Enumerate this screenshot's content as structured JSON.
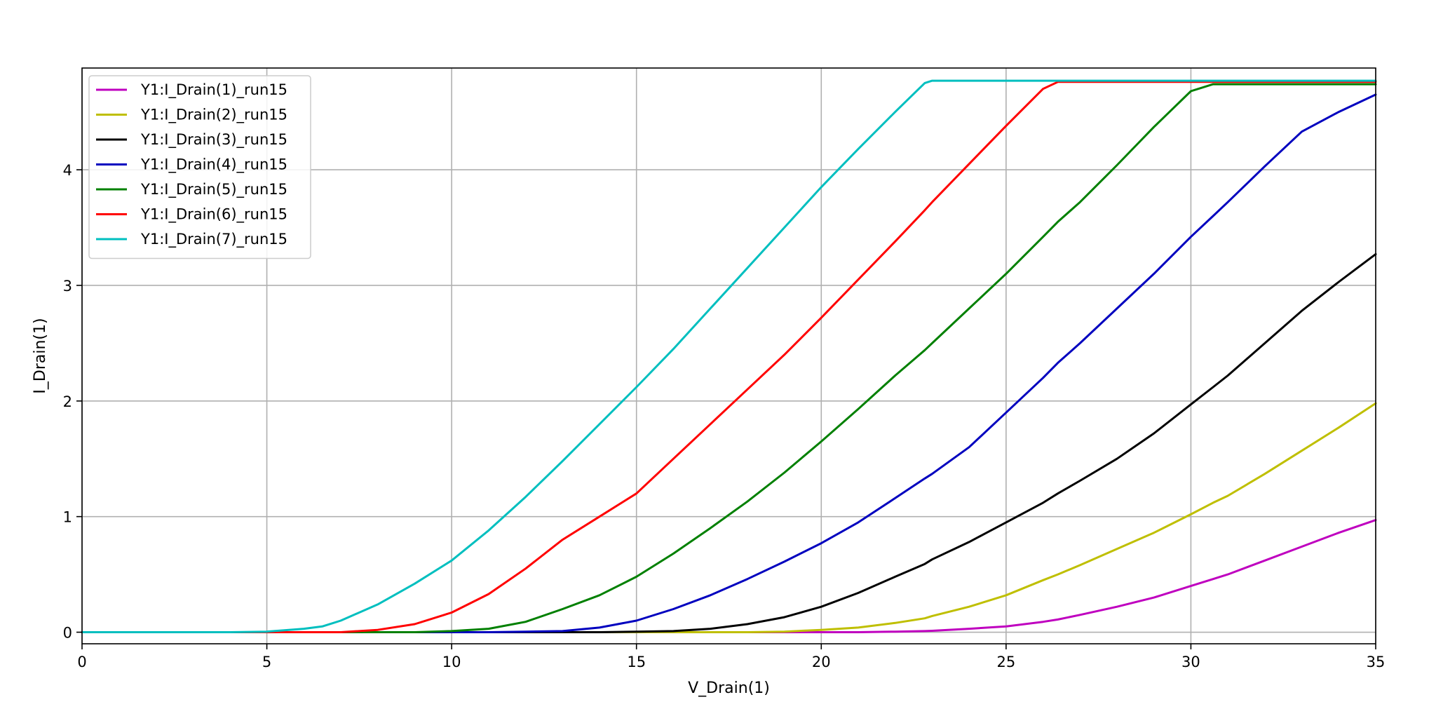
{
  "chart_data": {
    "type": "line",
    "title": "",
    "xlabel": "V_Drain(1)",
    "ylabel": "I_Drain(1)",
    "xlim": [
      0,
      35
    ],
    "ylim": [
      -0.1,
      4.88
    ],
    "xticks": [
      0,
      5,
      10,
      15,
      20,
      25,
      30,
      35
    ],
    "yticks": [
      0,
      1,
      2,
      3,
      4
    ],
    "grid": true,
    "legend_position": "top-left",
    "x": [
      0,
      2,
      4,
      5,
      6,
      6.5,
      7,
      8,
      9,
      10,
      11,
      12,
      13,
      14,
      15,
      16,
      17,
      18,
      19,
      20,
      21,
      22,
      22.8,
      23,
      24,
      25,
      26,
      26.4,
      27,
      28,
      29,
      30,
      30.6,
      31,
      32,
      33,
      34,
      35
    ],
    "series": [
      {
        "name": "Y1:I_Drain(1)_run15",
        "color": "#bf00bf",
        "values": [
          0,
          0,
          0,
          0,
          0,
          0,
          0,
          0,
          0,
          0,
          0,
          0,
          0,
          0,
          0,
          0,
          0,
          0,
          0,
          0,
          0,
          0.005,
          0.01,
          0.012,
          0.03,
          0.05,
          0.09,
          0.11,
          0.15,
          0.22,
          0.3,
          0.4,
          0.46,
          0.5,
          0.62,
          0.74,
          0.86,
          0.97
        ]
      },
      {
        "name": "Y1:I_Drain(2)_run15",
        "color": "#bfbf00",
        "values": [
          0,
          0,
          0,
          0,
          0,
          0,
          0,
          0,
          0,
          0,
          0,
          0,
          0,
          0,
          0,
          0,
          0,
          0,
          0.005,
          0.02,
          0.04,
          0.08,
          0.12,
          0.14,
          0.22,
          0.32,
          0.45,
          0.5,
          0.58,
          0.72,
          0.86,
          1.02,
          1.12,
          1.18,
          1.37,
          1.57,
          1.77,
          1.98
        ]
      },
      {
        "name": "Y1:I_Drain(3)_run15",
        "color": "#000000",
        "values": [
          0,
          0,
          0,
          0,
          0,
          0,
          0,
          0,
          0,
          0,
          0,
          0,
          0,
          0,
          0.005,
          0.01,
          0.03,
          0.07,
          0.13,
          0.22,
          0.34,
          0.48,
          0.59,
          0.63,
          0.78,
          0.95,
          1.12,
          1.2,
          1.31,
          1.5,
          1.72,
          1.97,
          2.12,
          2.22,
          2.5,
          2.78,
          3.03,
          3.27
        ]
      },
      {
        "name": "Y1:I_Drain(4)_run15",
        "color": "#0000bf",
        "values": [
          0,
          0,
          0,
          0,
          0,
          0,
          0,
          0,
          0,
          0,
          0,
          0.005,
          0.01,
          0.04,
          0.1,
          0.2,
          0.32,
          0.46,
          0.61,
          0.77,
          0.95,
          1.16,
          1.33,
          1.37,
          1.6,
          1.9,
          2.2,
          2.33,
          2.5,
          2.8,
          3.1,
          3.42,
          3.6,
          3.72,
          4.03,
          4.33,
          4.5,
          4.65
        ]
      },
      {
        "name": "Y1:I_Drain(5)_run15",
        "color": "#008000",
        "values": [
          0,
          0,
          0,
          0,
          0,
          0,
          0,
          0,
          0,
          0.01,
          0.03,
          0.09,
          0.2,
          0.32,
          0.48,
          0.68,
          0.9,
          1.13,
          1.38,
          1.65,
          1.93,
          2.22,
          2.44,
          2.5,
          2.8,
          3.1,
          3.42,
          3.55,
          3.72,
          4.04,
          4.37,
          4.68,
          4.74,
          4.74,
          4.74,
          4.74,
          4.74,
          4.74
        ]
      },
      {
        "name": "Y1:I_Drain(6)_run15",
        "color": "#ff0000",
        "values": [
          0,
          0,
          0,
          0,
          0,
          0,
          0,
          0.02,
          0.07,
          0.17,
          0.33,
          0.55,
          0.8,
          1.0,
          1.2,
          1.5,
          1.8,
          2.1,
          2.4,
          2.72,
          3.05,
          3.38,
          3.65,
          3.72,
          4.05,
          4.38,
          4.7,
          4.76,
          4.76,
          4.76,
          4.76,
          4.76,
          4.76,
          4.76,
          4.76,
          4.76,
          4.76,
          4.76
        ]
      },
      {
        "name": "Y1:I_Drain(7)_run15",
        "color": "#00bfbf",
        "values": [
          0,
          0,
          0,
          0.005,
          0.03,
          0.05,
          0.1,
          0.24,
          0.42,
          0.62,
          0.88,
          1.17,
          1.48,
          1.8,
          2.12,
          2.45,
          2.8,
          3.15,
          3.5,
          3.85,
          4.18,
          4.5,
          4.75,
          4.77,
          4.77,
          4.77,
          4.77,
          4.77,
          4.77,
          4.77,
          4.77,
          4.77,
          4.77,
          4.77,
          4.77,
          4.77,
          4.77,
          4.77
        ]
      }
    ]
  }
}
